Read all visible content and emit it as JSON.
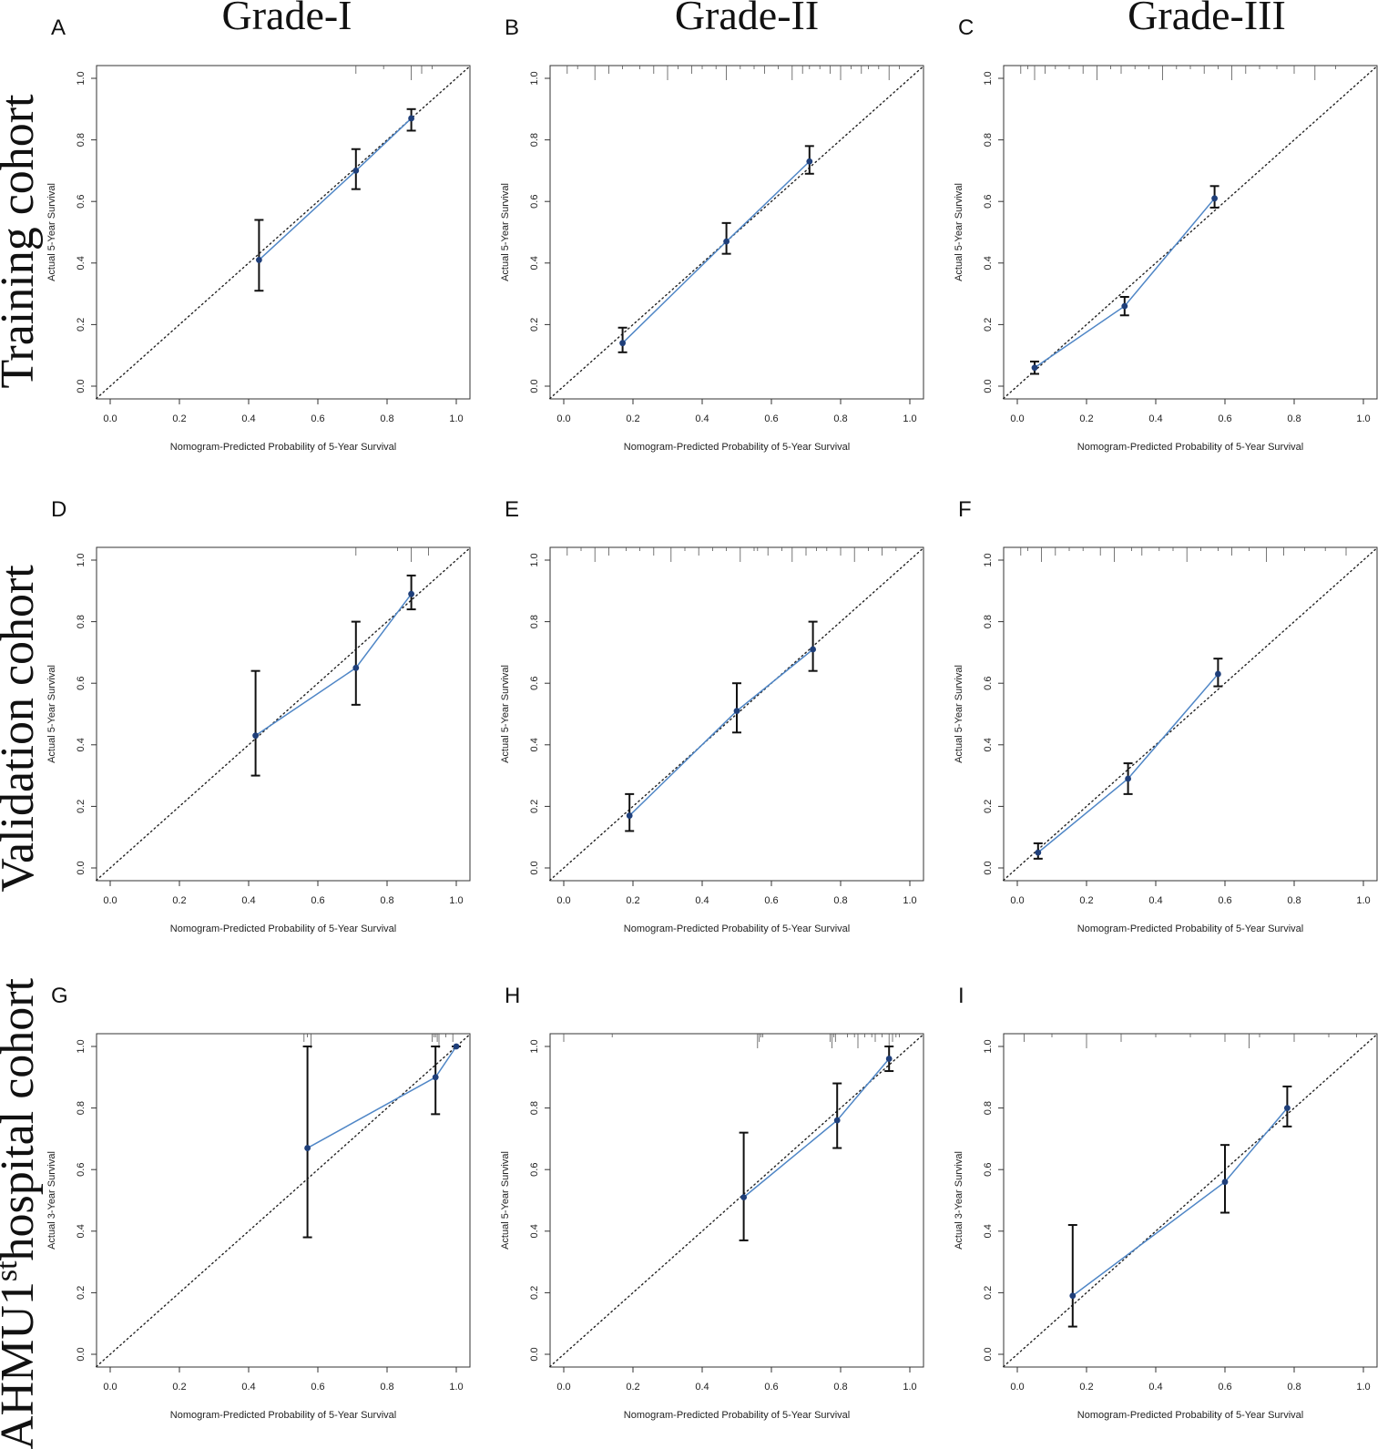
{
  "column_titles": [
    "Grade-I",
    "Grade-II",
    "Grade-III"
  ],
  "row_titles": [
    {
      "text": "Training cohort"
    },
    {
      "text": "Validation cohort"
    },
    {
      "text": "AHMU1",
      "sup": "st",
      "rest": "hospital cohort"
    }
  ],
  "colors": {
    "observed_line": "#4f86c6",
    "point": "#1f3f7a",
    "errorbar": "#111111",
    "ideal_line": "#222222",
    "frame": "#333333"
  },
  "chart_data": [
    {
      "panel": "A",
      "type": "scatter",
      "xlabel": "Nomogram-Predicted Probability of 5-Year Survival",
      "ylabel": "Actual 5-Year Survival",
      "xlim": [
        0,
        1
      ],
      "ylim": [
        0,
        1
      ],
      "xticks": [
        "0.0",
        "0.2",
        "0.4",
        "0.6",
        "0.8",
        "1.0"
      ],
      "yticks": [
        "0.0",
        "0.2",
        "0.4",
        "0.6",
        "0.8",
        "1.0"
      ],
      "points": [
        {
          "x": 0.43,
          "y": 0.41,
          "lo": 0.31,
          "hi": 0.54
        },
        {
          "x": 0.71,
          "y": 0.7,
          "lo": 0.64,
          "hi": 0.77
        },
        {
          "x": 0.87,
          "y": 0.87,
          "lo": 0.83,
          "hi": 0.9
        }
      ],
      "rug": [
        0.71,
        0.79,
        0.87,
        0.9,
        0.93
      ]
    },
    {
      "panel": "B",
      "type": "scatter",
      "xlabel": "Nomogram-Predicted Probability of 5-Year Survival",
      "ylabel": "Actual 5-Year Survival",
      "xlim": [
        0,
        1
      ],
      "ylim": [
        0,
        1
      ],
      "xticks": [
        "0.0",
        "0.2",
        "0.4",
        "0.6",
        "0.8",
        "1.0"
      ],
      "yticks": [
        "0.0",
        "0.2",
        "0.4",
        "0.6",
        "0.8",
        "1.0"
      ],
      "points": [
        {
          "x": 0.17,
          "y": 0.14,
          "lo": 0.11,
          "hi": 0.19
        },
        {
          "x": 0.47,
          "y": 0.47,
          "lo": 0.43,
          "hi": 0.53
        },
        {
          "x": 0.71,
          "y": 0.73,
          "lo": 0.69,
          "hi": 0.78
        }
      ],
      "rug": [
        0.01,
        0.04,
        0.09,
        0.13,
        0.17,
        0.22,
        0.26,
        0.3,
        0.33,
        0.37,
        0.4,
        0.44,
        0.47,
        0.51,
        0.55,
        0.58,
        0.62,
        0.66,
        0.69,
        0.71,
        0.74,
        0.77,
        0.8,
        0.83,
        0.86,
        0.88,
        0.91,
        0.94,
        0.97
      ]
    },
    {
      "panel": "C",
      "type": "scatter",
      "xlabel": "Nomogram-Predicted Probability of 5-Year Survival",
      "ylabel": "Actual 5-Year Survival",
      "xlim": [
        0,
        1
      ],
      "ylim": [
        0,
        1
      ],
      "xticks": [
        "0.0",
        "0.2",
        "0.4",
        "0.6",
        "0.8",
        "1.0"
      ],
      "yticks": [
        "0.0",
        "0.2",
        "0.4",
        "0.6",
        "0.8",
        "1.0"
      ],
      "points": [
        {
          "x": 0.05,
          "y": 0.06,
          "lo": 0.04,
          "hi": 0.08
        },
        {
          "x": 0.31,
          "y": 0.26,
          "lo": 0.23,
          "hi": 0.29
        },
        {
          "x": 0.57,
          "y": 0.61,
          "lo": 0.58,
          "hi": 0.65
        }
      ],
      "rug": [
        0.01,
        0.03,
        0.05,
        0.08,
        0.11,
        0.15,
        0.19,
        0.23,
        0.27,
        0.3,
        0.34,
        0.38,
        0.42,
        0.46,
        0.5,
        0.54,
        0.58,
        0.62,
        0.66,
        0.7,
        0.75,
        0.8,
        0.86,
        0.92
      ]
    },
    {
      "panel": "D",
      "type": "scatter",
      "xlabel": "Nomogram-Predicted Probability of 5-Year Survival",
      "ylabel": "Actual 5-Year Survival",
      "xlim": [
        0,
        1
      ],
      "ylim": [
        0,
        1
      ],
      "xticks": [
        "0.0",
        "0.2",
        "0.4",
        "0.6",
        "0.8",
        "1.0"
      ],
      "yticks": [
        "0.0",
        "0.2",
        "0.4",
        "0.6",
        "0.8",
        "1.0"
      ],
      "points": [
        {
          "x": 0.42,
          "y": 0.43,
          "lo": 0.3,
          "hi": 0.64
        },
        {
          "x": 0.71,
          "y": 0.65,
          "lo": 0.53,
          "hi": 0.8
        },
        {
          "x": 0.87,
          "y": 0.89,
          "lo": 0.84,
          "hi": 0.95
        }
      ],
      "rug": [
        0.71,
        0.83,
        0.87,
        0.92
      ]
    },
    {
      "panel": "E",
      "type": "scatter",
      "xlabel": "Nomogram-Predicted Probability of 5-Year Survival",
      "ylabel": "Actual 5-Year Survival",
      "xlim": [
        0,
        1
      ],
      "ylim": [
        0,
        1
      ],
      "xticks": [
        "0.0",
        "0.2",
        "0.4",
        "0.6",
        "0.8",
        "1.0"
      ],
      "yticks": [
        "0.0",
        "0.2",
        "0.4",
        "0.6",
        "0.8",
        "1.0"
      ],
      "points": [
        {
          "x": 0.19,
          "y": 0.17,
          "lo": 0.12,
          "hi": 0.24
        },
        {
          "x": 0.5,
          "y": 0.51,
          "lo": 0.44,
          "hi": 0.6
        },
        {
          "x": 0.72,
          "y": 0.71,
          "lo": 0.64,
          "hi": 0.8
        }
      ],
      "rug": [
        0.01,
        0.05,
        0.09,
        0.13,
        0.18,
        0.22,
        0.26,
        0.31,
        0.35,
        0.39,
        0.43,
        0.47,
        0.51,
        0.55,
        0.56,
        0.59,
        0.63,
        0.66,
        0.7,
        0.73,
        0.76,
        0.8,
        0.84,
        0.88,
        0.92,
        0.96
      ]
    },
    {
      "panel": "F",
      "type": "scatter",
      "xlabel": "Nomogram-Predicted Probability of 5-Year Survival",
      "ylabel": "Actual 5-Year Survival",
      "xlim": [
        0,
        1
      ],
      "ylim": [
        0,
        1
      ],
      "xticks": [
        "0.0",
        "0.2",
        "0.4",
        "0.6",
        "0.8",
        "1.0"
      ],
      "yticks": [
        "0.0",
        "0.2",
        "0.4",
        "0.6",
        "0.8",
        "1.0"
      ],
      "points": [
        {
          "x": 0.06,
          "y": 0.05,
          "lo": 0.03,
          "hi": 0.08
        },
        {
          "x": 0.32,
          "y": 0.29,
          "lo": 0.24,
          "hi": 0.34
        },
        {
          "x": 0.58,
          "y": 0.63,
          "lo": 0.59,
          "hi": 0.68
        }
      ],
      "rug": [
        0.01,
        0.03,
        0.07,
        0.11,
        0.15,
        0.19,
        0.24,
        0.28,
        0.33,
        0.36,
        0.41,
        0.45,
        0.49,
        0.53,
        0.58,
        0.62,
        0.67,
        0.72,
        0.77,
        0.83,
        0.89,
        0.95
      ]
    },
    {
      "panel": "G",
      "type": "scatter",
      "xlabel": "Nomogram-Predicted Probability of 5-Year Survival",
      "ylabel": "Actual 3-Year Survival",
      "xlim": [
        0,
        1
      ],
      "ylim": [
        0,
        1
      ],
      "xticks": [
        "0.0",
        "0.2",
        "0.4",
        "0.6",
        "0.8",
        "1.0"
      ],
      "yticks": [
        "0.0",
        "0.2",
        "0.4",
        "0.6",
        "0.8",
        "1.0"
      ],
      "points": [
        {
          "x": 0.57,
          "y": 0.67,
          "lo": 0.38,
          "hi": 1.0
        },
        {
          "x": 0.94,
          "y": 0.9,
          "lo": 0.78,
          "hi": 1.0
        },
        {
          "x": 1.0,
          "y": 1.0,
          "lo": 1.0,
          "hi": 1.0
        }
      ],
      "rug": [
        0.56,
        0.57,
        0.58,
        0.93,
        0.935,
        0.94,
        0.945,
        0.95,
        0.97,
        0.99
      ]
    },
    {
      "panel": "H",
      "type": "scatter",
      "xlabel": "Nomogram-Predicted Probability of 5-Year Survival",
      "ylabel": "Actual 5-Year Survival",
      "xlim": [
        0,
        1
      ],
      "ylim": [
        0,
        1
      ],
      "xticks": [
        "0.0",
        "0.2",
        "0.4",
        "0.6",
        "0.8",
        "1.0"
      ],
      "yticks": [
        "0.0",
        "0.2",
        "0.4",
        "0.6",
        "0.8",
        "1.0"
      ],
      "points": [
        {
          "x": 0.52,
          "y": 0.51,
          "lo": 0.37,
          "hi": 0.72
        },
        {
          "x": 0.79,
          "y": 0.76,
          "lo": 0.67,
          "hi": 0.88
        },
        {
          "x": 0.94,
          "y": 0.96,
          "lo": 0.92,
          "hi": 1.0
        }
      ],
      "rug": [
        0.0,
        0.14,
        0.56,
        0.565,
        0.57,
        0.575,
        0.77,
        0.775,
        0.78,
        0.785,
        0.82,
        0.84,
        0.85,
        0.87,
        0.89,
        0.9,
        0.92,
        0.94,
        0.95,
        0.96,
        0.97
      ]
    },
    {
      "panel": "I",
      "type": "scatter",
      "xlabel": "Nomogram-Predicted Probability of 5-Year Survival",
      "ylabel": "Actual 3-Year Survival",
      "xlim": [
        0,
        1
      ],
      "ylim": [
        0,
        1
      ],
      "xticks": [
        "0.0",
        "0.2",
        "0.4",
        "0.6",
        "0.8",
        "1.0"
      ],
      "yticks": [
        "0.0",
        "0.2",
        "0.4",
        "0.6",
        "0.8",
        "1.0"
      ],
      "points": [
        {
          "x": 0.16,
          "y": 0.19,
          "lo": 0.09,
          "hi": 0.42
        },
        {
          "x": 0.6,
          "y": 0.56,
          "lo": 0.46,
          "hi": 0.68
        },
        {
          "x": 0.78,
          "y": 0.8,
          "lo": 0.74,
          "hi": 0.87
        }
      ],
      "rug": [
        0.02,
        0.1,
        0.2,
        0.3,
        0.4,
        0.5,
        0.6,
        0.67,
        0.7,
        0.8,
        0.9,
        0.98
      ]
    }
  ]
}
